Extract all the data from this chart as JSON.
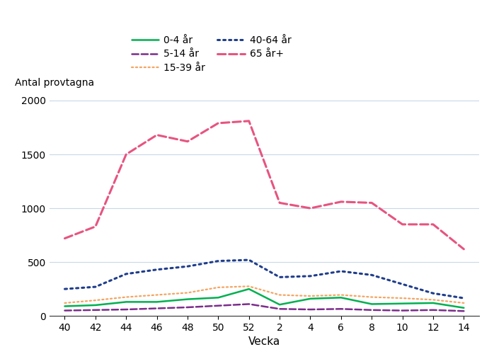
{
  "x_labels": [
    "40",
    "42",
    "44",
    "46",
    "48",
    "50",
    "52",
    "2",
    "4",
    "6",
    "8",
    "10",
    "12",
    "14"
  ],
  "x_positions": [
    0,
    1,
    2,
    3,
    4,
    5,
    6,
    7,
    8,
    9,
    10,
    11,
    12,
    13
  ],
  "series": {
    "0-4 år": {
      "values": [
        90,
        100,
        130,
        130,
        155,
        170,
        250,
        105,
        160,
        170,
        110,
        115,
        120,
        75
      ],
      "color": "#00b050",
      "linestyle": "solid",
      "linewidth": 1.8,
      "label": "0-4 år"
    },
    "5-14 år": {
      "values": [
        50,
        55,
        60,
        70,
        80,
        95,
        110,
        65,
        60,
        65,
        55,
        50,
        55,
        45
      ],
      "color": "#7b2d8b",
      "linestyle": "dashed",
      "linewidth": 1.8,
      "label": "5-14 år"
    },
    "15-39 år": {
      "values": [
        120,
        145,
        175,
        195,
        215,
        265,
        275,
        195,
        185,
        195,
        175,
        165,
        150,
        120
      ],
      "color": "#f4a460",
      "linestyle": "dotted",
      "linewidth": 1.6,
      "label": "15-39 år"
    },
    "40-64 år": {
      "values": [
        250,
        270,
        390,
        430,
        460,
        510,
        520,
        360,
        370,
        415,
        380,
        295,
        210,
        165
      ],
      "color": "#1f3d8c",
      "linestyle": "dotted",
      "linewidth": 2.2,
      "label": "40-64 år"
    },
    "65 år+": {
      "values": [
        720,
        830,
        1500,
        1680,
        1620,
        1790,
        1810,
        1050,
        1000,
        1060,
        1050,
        850,
        850,
        620
      ],
      "color": "#e75480",
      "linestyle": "dashed",
      "linewidth": 2.2,
      "label": "65 år+"
    }
  },
  "xlabel": "Vecka",
  "ylabel": "Antal provtagna",
  "ylim": [
    0,
    2100
  ],
  "yticks": [
    0,
    500,
    1000,
    1500,
    2000
  ],
  "background_color": "#ffffff",
  "grid_color": "#c8d8e8",
  "legend_col1": [
    "0-4 år",
    "15-39 år",
    "65 år+"
  ],
  "legend_col2": [
    "5-14 år",
    "40-64 år"
  ]
}
